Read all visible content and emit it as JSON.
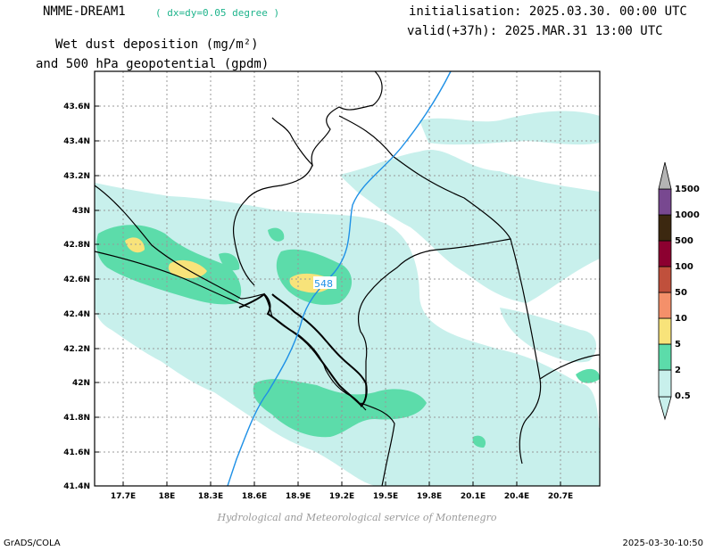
{
  "header": {
    "model_name": "NMME-DREAM1",
    "model_resolution": "( dx=dy=0.05 degree )",
    "initialisation": "initialisation: 2025.03.30. 00:00 UTC",
    "valid": "valid(+37h): 2025.MAR.31 13:00 UTC",
    "title_line1": "Wet dust deposition (mg/m²)",
    "title_line2": "and 500 hPa geopotential (gpdm)"
  },
  "map": {
    "lon_ticks": [
      "17.7E",
      "18E",
      "18.3E",
      "18.6E",
      "18.9E",
      "19.2E",
      "19.5E",
      "19.8E",
      "20.1E",
      "20.4E",
      "20.7E"
    ],
    "lat_ticks": [
      "43.6N",
      "43.4N",
      "43.2N",
      "43N",
      "42.8N",
      "42.6N",
      "42.4N",
      "42.2N",
      "42N",
      "41.8N",
      "41.6N",
      "41.4N"
    ],
    "contour_label": "548",
    "colors": {
      "level_0_5": "#c8f0ec",
      "level_2": "#5cdcaa",
      "level_5": "#f8e37a",
      "contour": "#1e90e6",
      "border": "#000000",
      "grid": "#999999"
    }
  },
  "legend": {
    "labels": [
      "0.5",
      "2",
      "5",
      "10",
      "50",
      "100",
      "500",
      "1000",
      "1500"
    ],
    "colors": [
      "#c8f0ec",
      "#5cdcaa",
      "#f8e37a",
      "#f4906a",
      "#c0503c",
      "#8c0030",
      "#3c2810",
      "#784890",
      "#b4b4b4"
    ]
  },
  "footer": {
    "credit": "Hydrological and Meteorological service of Montenegro",
    "left": "GrADS/COLA",
    "right": "2025-03-30-10:50"
  }
}
